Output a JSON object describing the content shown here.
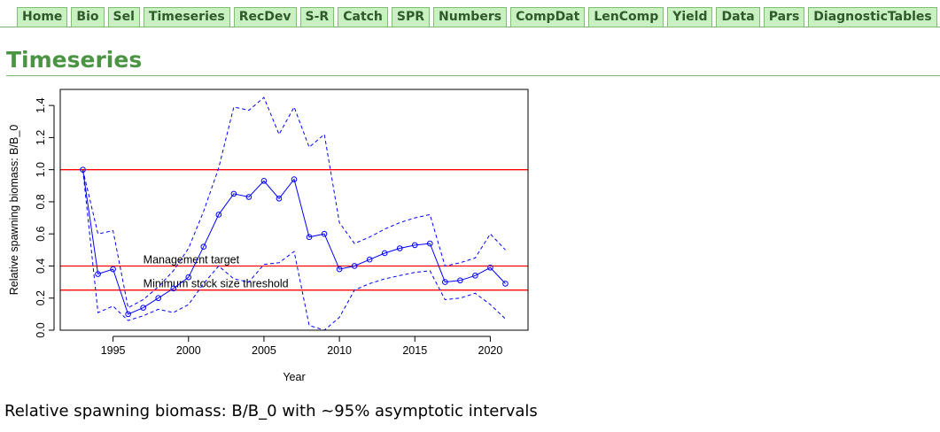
{
  "nav": {
    "tabs": [
      "Home",
      "Bio",
      "Sel",
      "Timeseries",
      "RecDev",
      "S-R",
      "Catch",
      "SPR",
      "Numbers",
      "CompDat",
      "LenComp",
      "Yield",
      "Data",
      "Pars",
      "DiagnosticTables"
    ]
  },
  "page": {
    "title": "Timeseries",
    "caption": "Relative spawning biomass: B/B_0 with ~95% asymptotic intervals"
  },
  "chart_data": {
    "type": "line",
    "xlabel": "Year",
    "ylabel": "Relative spawning biomass: B/B_0",
    "xlim": [
      1991.5,
      2022.5
    ],
    "ylim": [
      0,
      1.5
    ],
    "xticks": [
      1995,
      2000,
      2005,
      2010,
      2015,
      2020
    ],
    "yticks": [
      0.0,
      0.2,
      0.4,
      0.6,
      0.8,
      1.0,
      1.2,
      1.4
    ],
    "x": [
      1993,
      1994,
      1995,
      1996,
      1997,
      1998,
      1999,
      2000,
      2001,
      2002,
      2003,
      2004,
      2005,
      2006,
      2007,
      2008,
      2009,
      2010,
      2011,
      2012,
      2013,
      2014,
      2015,
      2016,
      2017,
      2018,
      2019,
      2020,
      2021
    ],
    "series": [
      {
        "role": "estimate",
        "color": "#0000ff",
        "style": "solid-points",
        "values": [
          1.0,
          0.35,
          0.38,
          0.1,
          0.14,
          0.2,
          0.26,
          0.33,
          0.52,
          0.72,
          0.85,
          0.83,
          0.93,
          0.82,
          0.94,
          0.58,
          0.6,
          0.38,
          0.4,
          0.44,
          0.48,
          0.51,
          0.53,
          0.54,
          0.3,
          0.31,
          0.34,
          0.39,
          0.29
        ]
      },
      {
        "role": "upper",
        "color": "#0000ff",
        "style": "dashed",
        "values": [
          1.0,
          0.6,
          0.62,
          0.14,
          0.19,
          0.27,
          0.37,
          0.51,
          0.74,
          1.01,
          1.39,
          1.37,
          1.45,
          1.22,
          1.39,
          1.14,
          1.22,
          0.67,
          0.54,
          0.58,
          0.63,
          0.67,
          0.7,
          0.72,
          0.4,
          0.42,
          0.45,
          0.6,
          0.5
        ]
      },
      {
        "role": "lower",
        "color": "#0000ff",
        "style": "dashed",
        "values": [
          1.0,
          0.11,
          0.15,
          0.06,
          0.09,
          0.13,
          0.11,
          0.16,
          0.29,
          0.4,
          0.32,
          0.3,
          0.41,
          0.42,
          0.49,
          0.03,
          0.0,
          0.08,
          0.25,
          0.29,
          0.32,
          0.34,
          0.36,
          0.37,
          0.19,
          0.2,
          0.23,
          0.16,
          0.07
        ]
      }
    ],
    "reference_lines": [
      {
        "y": 1.0,
        "color": "#ff0000",
        "label": ""
      },
      {
        "y": 0.4,
        "color": "#ff0000",
        "label": "Management target",
        "label_x": 1997
      },
      {
        "y": 0.25,
        "color": "#ff0000",
        "label": "Minimum stock size threshold",
        "label_x": 1997
      }
    ],
    "grid": false,
    "legend": "none"
  }
}
